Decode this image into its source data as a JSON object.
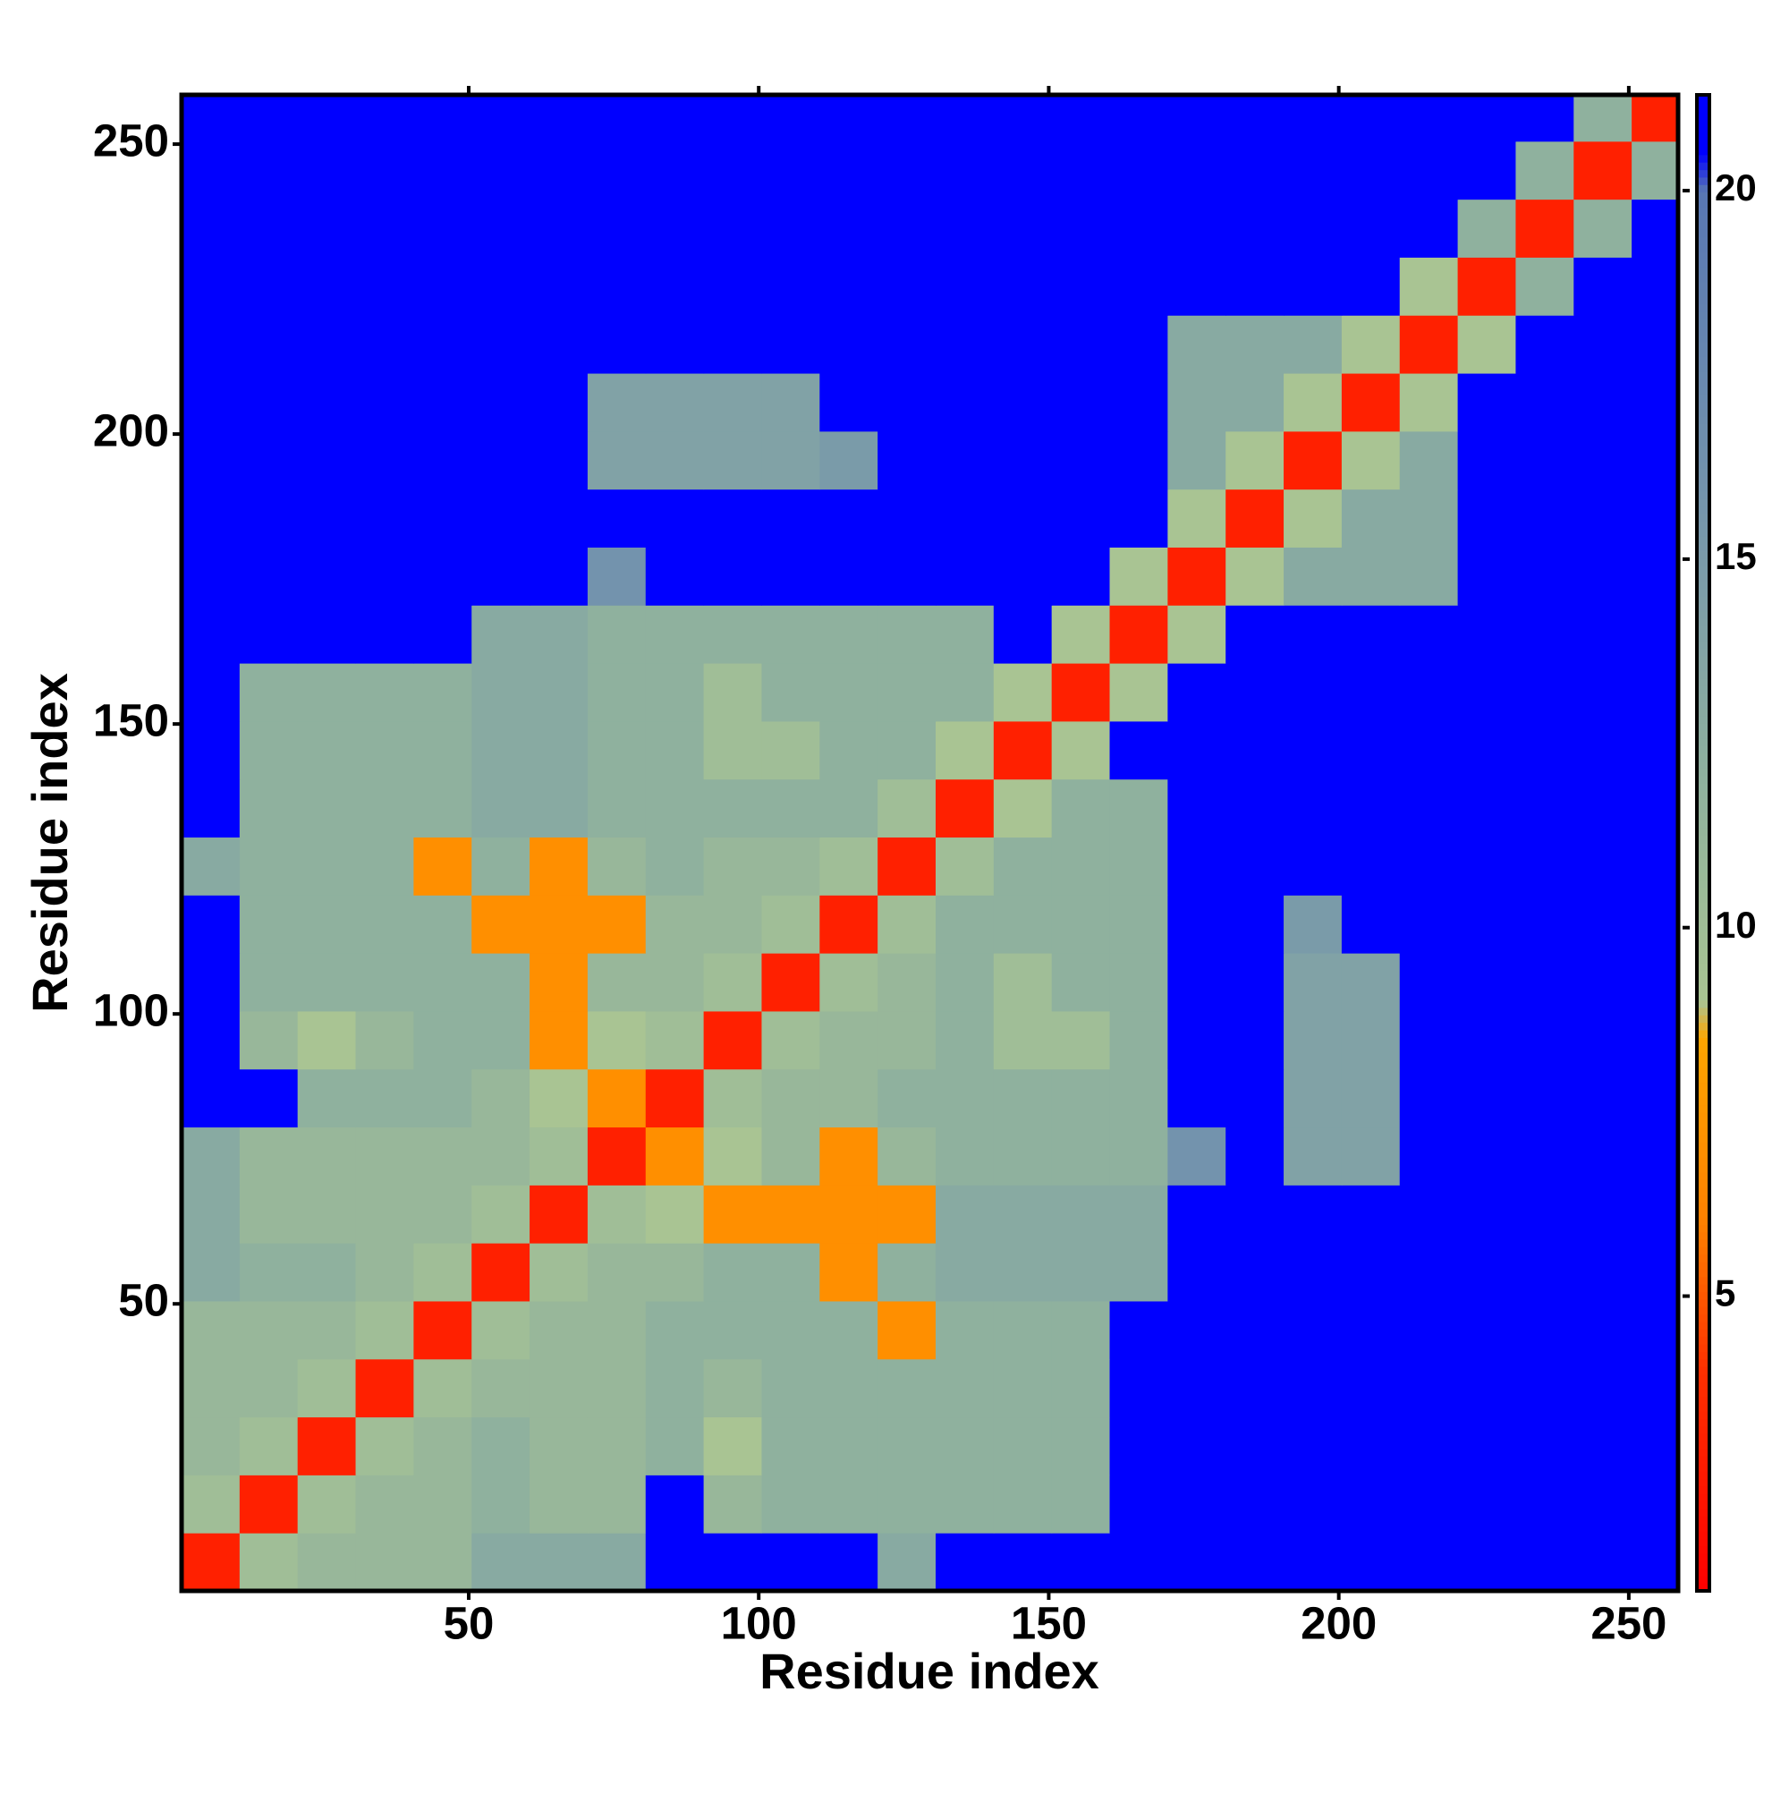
{
  "chart_data": {
    "type": "heatmap",
    "xlabel": "Residue index",
    "ylabel": "Residue index",
    "xlim": [
      0.5,
      258.5
    ],
    "ylim": [
      0.5,
      258.5
    ],
    "xticks": [
      50,
      100,
      150,
      200,
      250
    ],
    "yticks": [
      50,
      100,
      150,
      200,
      250
    ],
    "x_bins": [
      0.5,
      10.5,
      20.5,
      30.5,
      40.5,
      50.5,
      60.5,
      70.5,
      80.5,
      90.5,
      100.5,
      110.5,
      120.5,
      130.5,
      140.5,
      150.5,
      160.5,
      170.5,
      180.5,
      190.5,
      200.5,
      210.5,
      220.5,
      230.5,
      240.5,
      250.5,
      258.5
    ],
    "y_bins": [
      0.5,
      10.5,
      20.5,
      30.5,
      40.5,
      50.5,
      60.5,
      70.5,
      80.5,
      90.5,
      100.5,
      110.5,
      120.5,
      130.5,
      140.5,
      150.5,
      160.5,
      170.5,
      180.5,
      190.5,
      200.5,
      210.5,
      220.5,
      230.5,
      240.5,
      250.5,
      258.5
    ],
    "z": [
      [
        3,
        10,
        11,
        11,
        11,
        13,
        13,
        13,
        21,
        21,
        21,
        21,
        13,
        21,
        21,
        21,
        21,
        21,
        21,
        21,
        21,
        21,
        21,
        21,
        21,
        21
      ],
      [
        10,
        3,
        10,
        11,
        11,
        12,
        11,
        11,
        21,
        11,
        12,
        12,
        12,
        12,
        12,
        12,
        21,
        21,
        21,
        21,
        21,
        21,
        21,
        21,
        21,
        21
      ],
      [
        11,
        10,
        3,
        10,
        11,
        12,
        11,
        11,
        12,
        9,
        12,
        12,
        12,
        12,
        12,
        12,
        21,
        21,
        21,
        21,
        21,
        21,
        21,
        21,
        21,
        21
      ],
      [
        11,
        11,
        10,
        3,
        10,
        11,
        11,
        11,
        12,
        11,
        12,
        12,
        12,
        12,
        12,
        12,
        21,
        21,
        21,
        21,
        21,
        21,
        21,
        21,
        21,
        21
      ],
      [
        11,
        11,
        11,
        10,
        3,
        10,
        11,
        11,
        12,
        12,
        12,
        12,
        7,
        12,
        12,
        12,
        21,
        21,
        21,
        21,
        21,
        21,
        21,
        21,
        21,
        21
      ],
      [
        13,
        12,
        12,
        11,
        10,
        3,
        10,
        11,
        11,
        12,
        12,
        7,
        12,
        13,
        13,
        13,
        13,
        21,
        21,
        21,
        21,
        21,
        21,
        21,
        21,
        21
      ],
      [
        13,
        11,
        11,
        11,
        11,
        10,
        3,
        10,
        9,
        7,
        7,
        7,
        7,
        13,
        13,
        13,
        13,
        21,
        21,
        21,
        21,
        21,
        21,
        21,
        21,
        21
      ],
      [
        13,
        11,
        11,
        11,
        11,
        11,
        10,
        3,
        7,
        9,
        11,
        7,
        11,
        12,
        12,
        12,
        12,
        16,
        21,
        14,
        14,
        21,
        21,
        21,
        21,
        21
      ],
      [
        21,
        21,
        12,
        12,
        12,
        11,
        9,
        7,
        3,
        10,
        11,
        11,
        12,
        12,
        12,
        12,
        12,
        21,
        21,
        14,
        14,
        21,
        21,
        21,
        21,
        21
      ],
      [
        21,
        11,
        9,
        11,
        12,
        12,
        7,
        9,
        10,
        3,
        10,
        11,
        11,
        12,
        10,
        10,
        12,
        21,
        21,
        14,
        14,
        21,
        21,
        21,
        21,
        21
      ],
      [
        21,
        12,
        12,
        12,
        12,
        12,
        7,
        11,
        11,
        10,
        3,
        10,
        11,
        12,
        10,
        12,
        12,
        21,
        21,
        14,
        14,
        21,
        21,
        21,
        21,
        21
      ],
      [
        21,
        12,
        12,
        12,
        12,
        7,
        7,
        7,
        11,
        11,
        10,
        3,
        10,
        12,
        12,
        12,
        12,
        21,
        21,
        15,
        21,
        21,
        21,
        21,
        21,
        21
      ],
      [
        13,
        12,
        12,
        12,
        7,
        12,
        7,
        11,
        12,
        11,
        11,
        10,
        3,
        10,
        12,
        12,
        12,
        21,
        21,
        21,
        21,
        21,
        21,
        21,
        21,
        21
      ],
      [
        21,
        12,
        12,
        12,
        12,
        13,
        13,
        12,
        12,
        12,
        12,
        12,
        10,
        3,
        9,
        12,
        12,
        21,
        21,
        21,
        21,
        21,
        21,
        21,
        21,
        21
      ],
      [
        21,
        12,
        12,
        12,
        12,
        13,
        13,
        12,
        12,
        10,
        10,
        12,
        12,
        9,
        3,
        9,
        21,
        21,
        21,
        21,
        21,
        21,
        21,
        21,
        21,
        21
      ],
      [
        21,
        12,
        12,
        12,
        12,
        13,
        13,
        12,
        12,
        10,
        12,
        12,
        12,
        12,
        9,
        3,
        9,
        21,
        21,
        21,
        21,
        21,
        21,
        21,
        21,
        21
      ],
      [
        21,
        21,
        21,
        21,
        21,
        13,
        13,
        12,
        12,
        12,
        12,
        12,
        12,
        12,
        21,
        9,
        3,
        9,
        21,
        21,
        21,
        21,
        21,
        21,
        21,
        21
      ],
      [
        21,
        21,
        21,
        21,
        21,
        21,
        21,
        16,
        21,
        21,
        21,
        21,
        21,
        21,
        21,
        21,
        9,
        3,
        9,
        13,
        13,
        13,
        21,
        21,
        21,
        21
      ],
      [
        21,
        21,
        21,
        21,
        21,
        21,
        21,
        21,
        21,
        21,
        21,
        21,
        21,
        21,
        21,
        21,
        21,
        9,
        3,
        9,
        13,
        13,
        21,
        21,
        21,
        21
      ],
      [
        21,
        21,
        21,
        21,
        21,
        21,
        21,
        14,
        14,
        14,
        14,
        15,
        21,
        21,
        21,
        21,
        21,
        13,
        9,
        3,
        9,
        13,
        21,
        21,
        21,
        21
      ],
      [
        21,
        21,
        21,
        21,
        21,
        21,
        21,
        14,
        14,
        14,
        14,
        21,
        21,
        21,
        21,
        21,
        21,
        13,
        13,
        9,
        3,
        9,
        21,
        21,
        21,
        21
      ],
      [
        21,
        21,
        21,
        21,
        21,
        21,
        21,
        21,
        21,
        21,
        21,
        21,
        21,
        21,
        21,
        21,
        21,
        13,
        13,
        13,
        9,
        3,
        9,
        21,
        21,
        21
      ],
      [
        21,
        21,
        21,
        21,
        21,
        21,
        21,
        21,
        21,
        21,
        21,
        21,
        21,
        21,
        21,
        21,
        21,
        21,
        21,
        21,
        21,
        9,
        3,
        12,
        21,
        21
      ],
      [
        21,
        21,
        21,
        21,
        21,
        21,
        21,
        21,
        21,
        21,
        21,
        21,
        21,
        21,
        21,
        21,
        21,
        21,
        21,
        21,
        21,
        21,
        12,
        3,
        12,
        21
      ],
      [
        21,
        21,
        21,
        21,
        21,
        21,
        21,
        21,
        21,
        21,
        21,
        21,
        21,
        21,
        21,
        21,
        21,
        21,
        21,
        21,
        21,
        21,
        21,
        12,
        3,
        12
      ],
      [
        21,
        21,
        21,
        21,
        21,
        21,
        21,
        21,
        21,
        21,
        21,
        21,
        21,
        21,
        21,
        21,
        21,
        21,
        21,
        21,
        21,
        21,
        21,
        21,
        12,
        3
      ]
    ],
    "colorscale": [
      {
        "value": 1,
        "color": "#ff0000"
      },
      {
        "value": 4,
        "color": "#ff3000"
      },
      {
        "value": 6,
        "color": "#ff8000"
      },
      {
        "value": 8.5,
        "color": "#ffa500"
      },
      {
        "value": 9,
        "color": "#a9c493"
      },
      {
        "value": 12,
        "color": "#8fb19e"
      },
      {
        "value": 16,
        "color": "#7393ad"
      },
      {
        "value": 20,
        "color": "#5877b3"
      },
      {
        "value": 20.5,
        "color": "#0000ff"
      }
    ],
    "colorbar": {
      "lim": [
        1,
        21.3
      ],
      "ticks": [
        5,
        10,
        15,
        20
      ]
    }
  }
}
